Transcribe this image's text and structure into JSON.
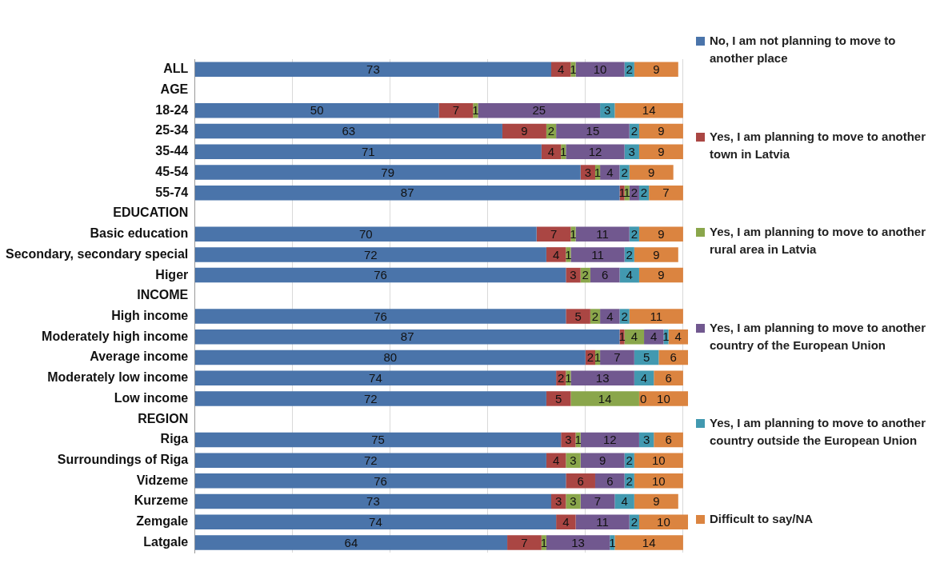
{
  "chart_data": {
    "type": "bar",
    "orientation": "horizontal",
    "stacked": true,
    "legend": "right",
    "grid": "x",
    "tick_labels": "y",
    "data_labels": true,
    "categories": [
      "ALL",
      "AGE",
      "18-24",
      "25-34",
      "35-44",
      "45-54",
      "55-74",
      "EDUCATION",
      "Basic education",
      "Secondary, secondary special",
      "Higer",
      "INCOME",
      "High income",
      "Moderately high income",
      "Average income",
      "Moderately low income",
      "Low income",
      "REGION",
      "Riga",
      "Surroundings of Riga",
      "Vidzeme",
      "Kurzeme",
      "Zemgale",
      "Latgale"
    ],
    "xlim": [
      0,
      101
    ],
    "annotations": [
      {
        "text": "0",
        "x": 91,
        "y": "Low income"
      }
    ],
    "xticks": [
      {
        "value": 0,
        "label": null
      },
      {
        "value": 20,
        "label": null
      },
      {
        "value": 40,
        "label": null
      },
      {
        "value": 60,
        "label": null
      },
      {
        "value": 80,
        "label": null
      },
      {
        "value": 100,
        "label": null
      }
    ],
    "series": [
      {
        "name": "No, I am not planning to move to another place",
        "color": "#4a74aa",
        "values": [
          73,
          null,
          50,
          63,
          71,
          79,
          87,
          null,
          70,
          72,
          76,
          null,
          76,
          87,
          80,
          74,
          72,
          null,
          75,
          72,
          76,
          73,
          74,
          64
        ]
      },
      {
        "name": "Yes, I am planning to move to another town in Latvia",
        "color": "#aa4643",
        "values": [
          4,
          null,
          7,
          9,
          4,
          3,
          1,
          null,
          7,
          4,
          3,
          null,
          5,
          1,
          2,
          2,
          5,
          null,
          3,
          4,
          6,
          3,
          4,
          7
        ]
      },
      {
        "name": "Yes, I am planning to move to another rural area in Latvia",
        "color": "#8aa64b",
        "values": [
          1,
          null,
          1,
          2,
          1,
          1,
          1,
          null,
          1,
          1,
          2,
          null,
          2,
          4,
          1,
          1,
          14,
          null,
          1,
          3,
          null,
          3,
          null,
          1
        ]
      },
      {
        "name": "Yes, I am planning to move to another country of the European Union",
        "color": "#71588f",
        "values": [
          10,
          null,
          25,
          15,
          12,
          4,
          2,
          null,
          11,
          11,
          6,
          null,
          4,
          4,
          7,
          13,
          null,
          null,
          12,
          9,
          6,
          7,
          11,
          13
        ]
      },
      {
        "name": "Yes, I am planning to move to another country outside the European Union",
        "color": "#4299b0",
        "values": [
          2,
          null,
          3,
          2,
          3,
          2,
          2,
          null,
          2,
          2,
          4,
          null,
          2,
          1,
          5,
          4,
          null,
          null,
          3,
          2,
          2,
          4,
          2,
          1
        ]
      },
      {
        "name": "Difficult to say/NA",
        "color": "#db8440",
        "values": [
          9,
          null,
          14,
          9,
          9,
          9,
          7,
          null,
          9,
          9,
          9,
          null,
          11,
          4,
          6,
          6,
          10,
          null,
          6,
          10,
          10,
          9,
          10,
          14
        ]
      }
    ]
  }
}
